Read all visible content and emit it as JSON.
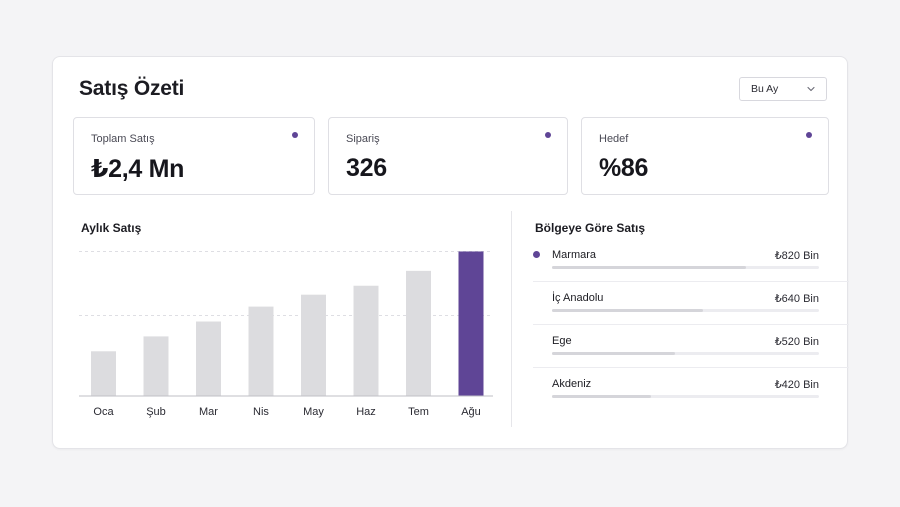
{
  "header": {
    "title": "Satış Özeti",
    "period_label": "Bu Ay"
  },
  "kpis": [
    {
      "label": "Toplam Satış",
      "value": "₺2,4 Mn"
    },
    {
      "label": "Sipariş",
      "value": "326"
    },
    {
      "label": "Hedef",
      "value": "%86"
    }
  ],
  "monthly": {
    "title": "Aylık Satış"
  },
  "regions": {
    "title": "Bölgeye Göre Satış",
    "items": [
      {
        "name": "Marmara",
        "value": "₺820 Bin",
        "amount": 820,
        "active": true
      },
      {
        "name": "İç Anadolu",
        "value": "₺640 Bin",
        "amount": 640,
        "active": false
      },
      {
        "name": "Ege",
        "value": "₺520 Bin",
        "amount": 520,
        "active": false
      },
      {
        "name": "Akdeniz",
        "value": "₺420 Bin",
        "amount": 420,
        "active": false
      }
    ]
  },
  "colors": {
    "accent": "#5f4596",
    "bar": "#dcdcdf",
    "bar_track": "#ececf0"
  },
  "chart_data": {
    "type": "bar",
    "title": "Aylık Satış",
    "categories": [
      "Oca",
      "Şub",
      "Mar",
      "Nis",
      "May",
      "Haz",
      "Tem",
      "Ağu"
    ],
    "values": [
      30,
      40,
      50,
      60,
      68,
      74,
      84,
      97
    ],
    "highlight_index": 7,
    "ylim": [
      0,
      100
    ],
    "grid": true
  }
}
